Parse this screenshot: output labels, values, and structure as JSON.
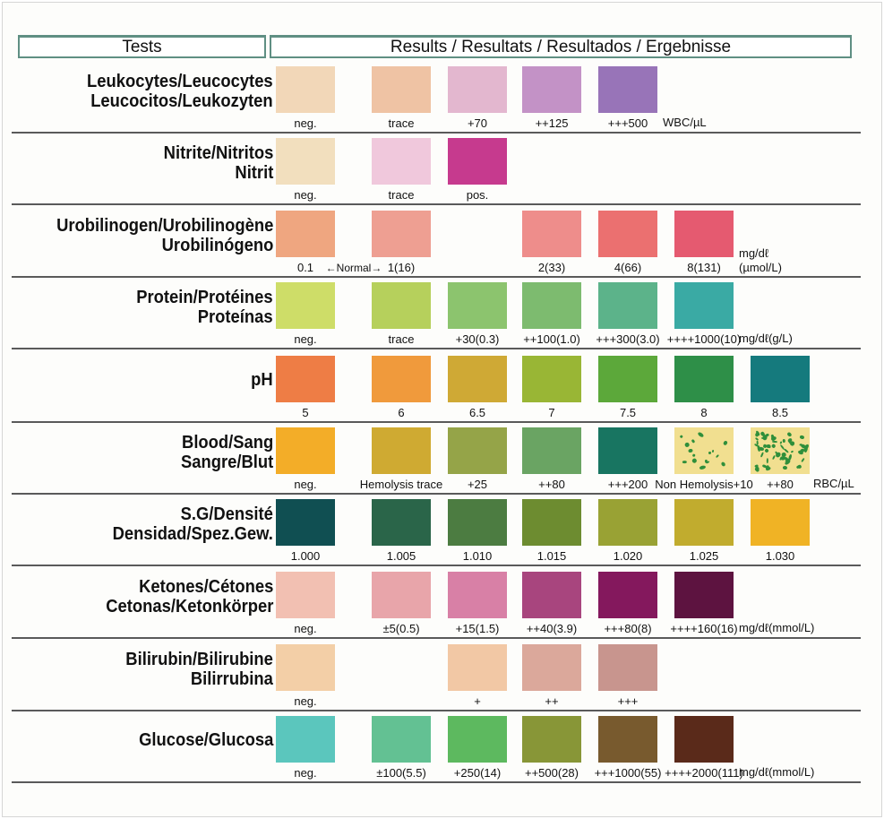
{
  "header": {
    "tests": "Tests",
    "results": "Results / Resultats / Resultados / Ergebnisse"
  },
  "rows": [
    {
      "name_lines": [
        "Leukocytes/Leucocytes",
        "Leucocitos/Leukozyten"
      ],
      "swatches": [
        {
          "col": 0,
          "color": "#f2d7b8",
          "label": "neg."
        },
        {
          "col": 1,
          "color": "#efc3a4",
          "label": "trace"
        },
        {
          "col": 2,
          "color": "#e3b7cf",
          "label": "+70"
        },
        {
          "col": 3,
          "color": "#c392c6",
          "label": "++125"
        },
        {
          "col": 4,
          "color": "#9874b8",
          "label": "+++500"
        }
      ],
      "unit_lines": [
        "WBC/µL"
      ]
    },
    {
      "name_lines": [
        "Nitrite/Nitritos",
        "Nitrit"
      ],
      "swatches": [
        {
          "col": 0,
          "color": "#f2dfbe",
          "label": "neg."
        },
        {
          "col": 1,
          "color": "#f0c8dc",
          "label": "trace"
        },
        {
          "col": 2,
          "color": "#c63a8e",
          "label": "pos."
        }
      ],
      "unit_lines": []
    },
    {
      "name_lines": [
        "Urobilinogen/Urobilinogène",
        "Urobilinógeno"
      ],
      "swatches": [
        {
          "col": 0,
          "color": "#efa680",
          "label": "0.1"
        },
        {
          "col": 1,
          "color": "#ee9f92",
          "label": "1(16)"
        },
        {
          "col": 3,
          "color": "#ee8d8b",
          "label": "2(33)"
        },
        {
          "col": 4,
          "color": "#eb7070",
          "label": "4(66)"
        },
        {
          "col": 5,
          "color": "#e55a70",
          "label": "8(131)"
        }
      ],
      "normal_label": "←Normal→",
      "unit_lines": [
        "mg/dℓ",
        "(µmol/L)"
      ]
    },
    {
      "name_lines": [
        "Protein/Protéines",
        "Proteínas"
      ],
      "swatches": [
        {
          "col": 0,
          "color": "#cedd68",
          "label": "neg."
        },
        {
          "col": 1,
          "color": "#b6d05c",
          "label": "trace"
        },
        {
          "col": 2,
          "color": "#8cc46e",
          "label": "+30(0.3)"
        },
        {
          "col": 3,
          "color": "#7dbb6f",
          "label": "++100(1.0)"
        },
        {
          "col": 4,
          "color": "#5cb38a",
          "label": "+++300(3.0)"
        },
        {
          "col": 5,
          "color": "#3aaaa4",
          "label": "++++1000(10)"
        }
      ],
      "unit_lines": [
        "mg/dℓ(g/L)"
      ]
    },
    {
      "name_lines": [
        "pH"
      ],
      "swatches": [
        {
          "col": 0,
          "color": "#ee7d45",
          "label": "5"
        },
        {
          "col": 1,
          "color": "#f09a3c",
          "label": "6"
        },
        {
          "col": 2,
          "color": "#cfa935",
          "label": "6.5"
        },
        {
          "col": 3,
          "color": "#99b635",
          "label": "7"
        },
        {
          "col": 4,
          "color": "#5ca83a",
          "label": "7.5"
        },
        {
          "col": 5,
          "color": "#2e8f48",
          "label": "8"
        },
        {
          "col": 6,
          "color": "#157a7d",
          "label": "8.5"
        }
      ],
      "unit_lines": []
    },
    {
      "name_lines": [
        "Blood/Sang",
        "Sangre/Blut"
      ],
      "swatches": [
        {
          "col": 0,
          "color": "#f3ad28",
          "label": "neg."
        },
        {
          "col": 1,
          "color": "#cfaa32",
          "label": "Hemolysis trace"
        },
        {
          "col": 2,
          "color": "#95a448",
          "label": "+25"
        },
        {
          "col": 3,
          "color": "#6aa463",
          "label": "++80"
        },
        {
          "col": 4,
          "color": "#187561",
          "label": "+++200"
        },
        {
          "col": 5,
          "color": "#f1df90",
          "label": "Non Hemolysis+10",
          "speckled": "sparse"
        },
        {
          "col": 6,
          "color": "#f1df90",
          "label": "++80",
          "speckled": "dense"
        }
      ],
      "unit_lines": [
        "RBC/µL"
      ]
    },
    {
      "name_lines": [
        "S.G/Densité",
        "Densidad/Spez.Gew."
      ],
      "swatches": [
        {
          "col": 0,
          "color": "#104f52",
          "label": "1.000"
        },
        {
          "col": 1,
          "color": "#2a6549",
          "label": "1.005"
        },
        {
          "col": 2,
          "color": "#4c7c41",
          "label": "1.010"
        },
        {
          "col": 3,
          "color": "#6d8c30",
          "label": "1.015"
        },
        {
          "col": 4,
          "color": "#99a234",
          "label": "1.020"
        },
        {
          "col": 5,
          "color": "#c1ac2e",
          "label": "1.025"
        },
        {
          "col": 6,
          "color": "#f0b325",
          "label": "1.030"
        }
      ],
      "unit_lines": []
    },
    {
      "name_lines": [
        "Ketones/Cétones",
        "Cetonas/Ketonkörper"
      ],
      "swatches": [
        {
          "col": 0,
          "color": "#f2c0b2",
          "label": "neg."
        },
        {
          "col": 1,
          "color": "#e8a5aa",
          "label": "±5(0.5)"
        },
        {
          "col": 2,
          "color": "#d880a6",
          "label": "+15(1.5)"
        },
        {
          "col": 3,
          "color": "#a8457e",
          "label": "++40(3.9)"
        },
        {
          "col": 4,
          "color": "#84185d",
          "label": "+++80(8)"
        },
        {
          "col": 5,
          "color": "#5d1340",
          "label": "++++160(16)"
        }
      ],
      "unit_lines": [
        "mg/dℓ(mmol/L)"
      ]
    },
    {
      "name_lines": [
        "Bilirubin/Bilirubine",
        "Bilirrubina"
      ],
      "swatches": [
        {
          "col": 0,
          "color": "#f3cfa7",
          "label": "neg."
        },
        {
          "col": 2,
          "color": "#f2c8a5",
          "label": "+"
        },
        {
          "col": 3,
          "color": "#dba89b",
          "label": "++"
        },
        {
          "col": 4,
          "color": "#c8958e",
          "label": "+++"
        }
      ],
      "unit_lines": []
    },
    {
      "name_lines": [
        "Glucose/Glucosa"
      ],
      "swatches": [
        {
          "col": 0,
          "color": "#5bc6bd",
          "label": "neg."
        },
        {
          "col": 1,
          "color": "#63c193",
          "label": "±100(5.5)"
        },
        {
          "col": 2,
          "color": "#5db95f",
          "label": "+250(14)"
        },
        {
          "col": 3,
          "color": "#889637",
          "label": "++500(28)"
        },
        {
          "col": 4,
          "color": "#785a2e",
          "label": "+++1000(55)"
        },
        {
          "col": 5,
          "color": "#5a2a1a",
          "label": "++++2000(111)"
        }
      ],
      "unit_lines": [
        "mg/dℓ(mmol/L)"
      ]
    }
  ]
}
